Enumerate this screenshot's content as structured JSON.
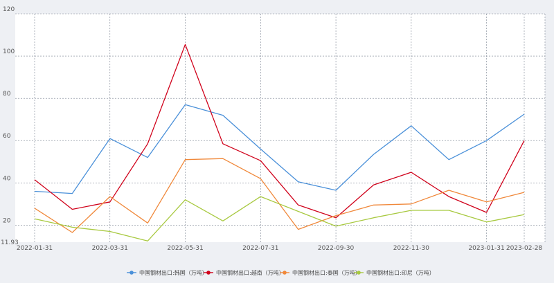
{
  "chart_data": {
    "type": "line",
    "ylim": [
      11.93,
      120
    ],
    "y_ticks": [
      20,
      40,
      60,
      80,
      100,
      120
    ],
    "y_min_label": "11.93",
    "x": [
      "2022-01-31",
      "2022-02-28",
      "2022-03-31",
      "2022-04-30",
      "2022-05-31",
      "2022-06-30",
      "2022-07-31",
      "2022-08-31",
      "2022-09-30",
      "2022-10-31",
      "2022-11-30",
      "2022-12-31",
      "2023-01-31",
      "2023-02-28"
    ],
    "x_tick_labels": [
      "2022-01-31",
      "2022-03-31",
      "2022-05-31",
      "2022-07-31",
      "2022-09-30",
      "2022-11-30",
      "2023-01-31",
      "2023-02-28"
    ],
    "grid": true,
    "legend_position": "bottom-center",
    "series": [
      {
        "name": "中国钢材出口:韩国（万吨）",
        "color": "#4a90d9",
        "values": [
          36,
          35,
          61,
          52,
          77,
          72,
          56,
          40.5,
          36.5,
          53.5,
          67,
          51,
          60,
          72.5
        ]
      },
      {
        "name": "中国钢材出口:越南（万吨）",
        "color": "#d0021b",
        "values": [
          41.5,
          27.5,
          31,
          58.5,
          105.5,
          58.5,
          50.5,
          29.5,
          23.5,
          39,
          45,
          33.5,
          26,
          60
        ]
      },
      {
        "name": "中国钢材出口:泰国（万吨）",
        "color": "#f0883a",
        "values": [
          28,
          16.5,
          33.5,
          21,
          51,
          51.5,
          42,
          18,
          24.5,
          29.5,
          30,
          36.5,
          31,
          35.5
        ]
      },
      {
        "name": "中国钢材出口:印尼（万吨）",
        "color": "#a8c940",
        "values": [
          23,
          19,
          17,
          12.5,
          32,
          22,
          33.5,
          26.5,
          19.5,
          23.5,
          27,
          27,
          21.5,
          25
        ]
      }
    ]
  }
}
